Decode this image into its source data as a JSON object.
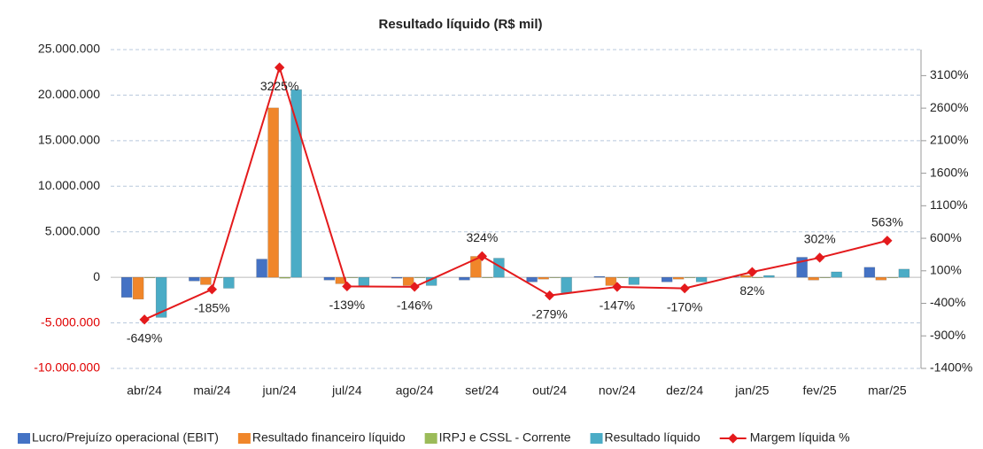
{
  "chart_data": {
    "type": "bar",
    "title": "Resultado líquido (R$ mil)",
    "categories": [
      "abr/24",
      "mai/24",
      "jun/24",
      "jul/24",
      "ago/24",
      "set/24",
      "out/24",
      "nov/24",
      "dez/24",
      "jan/25",
      "fev/25",
      "mar/25"
    ],
    "series": [
      {
        "name": "Lucro/Prejuízo operacional (EBIT)",
        "color": "#4472c4",
        "type": "bar",
        "values": [
          -2200000,
          -400000,
          2000000,
          -300000,
          -100000,
          -300000,
          -500000,
          100000,
          -500000,
          50000,
          2200000,
          1100000
        ]
      },
      {
        "name": "Resultado financeiro líquido",
        "color": "#f0862a",
        "type": "bar",
        "values": [
          -2400000,
          -800000,
          18600000,
          -700000,
          -900000,
          2300000,
          -200000,
          -900000,
          -200000,
          200000,
          -300000,
          -300000
        ]
      },
      {
        "name": "IRPJ e CSSL - Corrente",
        "color": "#9bbb59",
        "type": "bar",
        "values": [
          -50000,
          -20000,
          -100000,
          -20000,
          -10000,
          -50000,
          -20000,
          -20000,
          -20000,
          -10000,
          -50000,
          -50000
        ]
      },
      {
        "name": "Resultado líquido",
        "color": "#4bacc6",
        "type": "bar",
        "values": [
          -4400000,
          -1200000,
          20600000,
          -900000,
          -900000,
          2100000,
          -1700000,
          -800000,
          -500000,
          200000,
          600000,
          900000
        ]
      },
      {
        "name": "Margem líquida %",
        "color": "#e41a1c",
        "type": "line",
        "axis": "y2",
        "values": [
          -649,
          -185,
          3225,
          -139,
          -146,
          324,
          -279,
          -147,
          -170,
          82,
          302,
          563
        ],
        "value_labels": [
          "-649%",
          "-185%",
          "3225%",
          "-139%",
          "-146%",
          "324%",
          "-279%",
          "-147%",
          "-170%",
          "82%",
          "302%",
          "563%"
        ]
      }
    ],
    "ylim": [
      -10000000,
      25000000
    ],
    "yticks": [
      {
        "value": -10000000,
        "label": "-10.000.000"
      },
      {
        "value": -5000000,
        "label": "-5.000.000"
      },
      0,
      {
        "value": 5000000,
        "label": "5.000.000"
      },
      {
        "value": 10000000,
        "label": "10.000.000"
      },
      {
        "value": 15000000,
        "label": "15.000.000"
      },
      {
        "value": 20000000,
        "label": "20.000.000"
      },
      {
        "value": 25000000,
        "label": "25.000.000"
      }
    ],
    "y2lim": [
      -1400,
      3500
    ],
    "y2ticks": [
      {
        "value": -1400,
        "label": "-1400%"
      },
      {
        "value": -900,
        "label": "-900%"
      },
      {
        "value": -400,
        "label": "-400%"
      },
      {
        "value": 100,
        "label": "100%"
      },
      {
        "value": 600,
        "label": "600%"
      },
      {
        "value": 1100,
        "label": "1100%"
      },
      {
        "value": 1600,
        "label": "1600%"
      },
      {
        "value": 2100,
        "label": "2100%"
      },
      {
        "value": 2600,
        "label": "2600%"
      },
      {
        "value": 3100,
        "label": "3100%"
      }
    ],
    "grid": true,
    "legend": "bottom"
  }
}
